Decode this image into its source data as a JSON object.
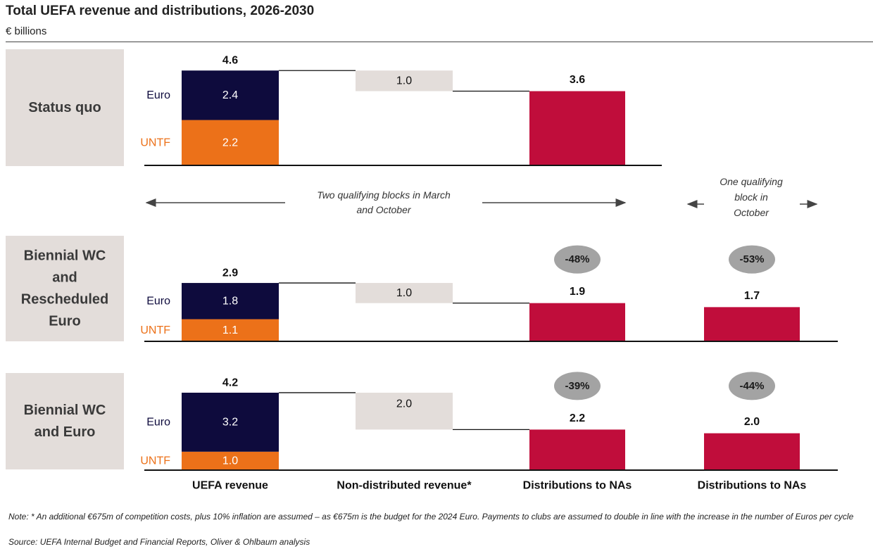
{
  "title": "Total UEFA revenue and distributions, 2026-2030",
  "subtitle": "€ billions",
  "colors": {
    "euro": "#0e0b3d",
    "untf": "#ec7119",
    "non_distributed": "#e3ddda",
    "distributions": "#c00d3b",
    "label_box": "#e3ddda",
    "pct_bubble": "#a3a3a3",
    "euro_text": "#0e0b3d",
    "untf_text": "#ec7119"
  },
  "annotations": {
    "two_blocks": "Two qualifying blocks in March and October",
    "one_block": "One qualifying block in October"
  },
  "chart_data": {
    "type": "bar",
    "categories": [
      "UEFA revenue",
      "Non-distributed revenue*",
      "Distributions to NAs",
      "Distributions to NAs"
    ],
    "series_labels": {
      "euro": "Euro",
      "untf": "UNTF"
    },
    "scenarios": [
      {
        "name": "Status quo",
        "euro": 2.4,
        "untf": 2.2,
        "total": 4.6,
        "non_distributed": 1.0,
        "distributions": 3.6,
        "distributions_one_block": null,
        "change_two_blocks": null,
        "change_one_block": null
      },
      {
        "name": "Biennial WC and Rescheduled Euro",
        "euro": 1.8,
        "untf": 1.1,
        "total": 2.9,
        "non_distributed": 1.0,
        "distributions": 1.9,
        "distributions_one_block": 1.7,
        "change_two_blocks": "-48%",
        "change_one_block": "-53%"
      },
      {
        "name": "Biennial WC and Euro",
        "euro": 3.2,
        "untf": 1.0,
        "total": 4.2,
        "non_distributed": 2.0,
        "distributions": 2.2,
        "distributions_one_block": 2.0,
        "change_two_blocks": "-39%",
        "change_one_block": "-44%"
      }
    ]
  },
  "notes": {
    "note": "Note:    * An additional €675m of competition costs, plus 10% inflation are assumed – as €675m is the budget for the 2024 Euro. Payments to clubs are assumed to double in line with the increase in the number of Euros per cycle",
    "source": "Source: UEFA Internal Budget and Financial Reports, Oliver & Ohlbaum analysis"
  }
}
